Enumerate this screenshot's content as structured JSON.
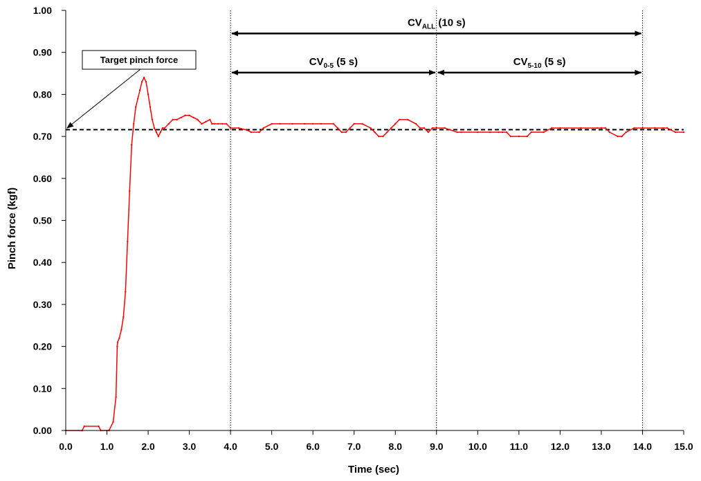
{
  "chart_data": {
    "type": "line",
    "xlabel": "Time (sec)",
    "ylabel": "Pinch force (kgf)",
    "xlim": [
      0,
      15
    ],
    "ylim": [
      0,
      1
    ],
    "x_ticks": [
      "0.0",
      "1.0",
      "2.0",
      "3.0",
      "4.0",
      "5.0",
      "6.0",
      "7.0",
      "8.0",
      "9.0",
      "10.0",
      "11.0",
      "12.0",
      "13.0",
      "14.0",
      "15.0"
    ],
    "y_ticks": [
      "0.00",
      "0.10",
      "0.20",
      "0.30",
      "0.40",
      "0.50",
      "0.60",
      "0.70",
      "0.80",
      "0.90",
      "1.00"
    ],
    "grid": false,
    "target_line": {
      "value": 0.716,
      "style": "dashed",
      "color": "#000000"
    },
    "series": [
      {
        "color": "#ff0000",
        "x": [
          0.0,
          0.4,
          0.45,
          0.8,
          0.85,
          1.05,
          1.15,
          1.22,
          1.25,
          1.26,
          1.3,
          1.35,
          1.4,
          1.45,
          1.5,
          1.55,
          1.6,
          1.65,
          1.7,
          1.75,
          1.8,
          1.85,
          1.9,
          1.95,
          2.0,
          2.05,
          2.1,
          2.15,
          2.2,
          2.25,
          2.3,
          2.35,
          2.4,
          2.5,
          2.6,
          2.7,
          2.8,
          2.9,
          3.0,
          3.1,
          3.2,
          3.3,
          3.4,
          3.5,
          3.55,
          3.6,
          3.7,
          3.8,
          3.9,
          4.0,
          4.2,
          4.4,
          4.5,
          4.7,
          4.8,
          5.0,
          5.2,
          5.5,
          5.8,
          6.0,
          6.2,
          6.5,
          6.6,
          6.7,
          6.8,
          6.9,
          7.0,
          7.2,
          7.4,
          7.5,
          7.6,
          7.7,
          7.8,
          7.9,
          8.0,
          8.1,
          8.3,
          8.5,
          8.6,
          8.7,
          8.8,
          8.9,
          9.0,
          9.2,
          9.5,
          9.6,
          10.0,
          10.3,
          10.5,
          10.6,
          10.7,
          10.8,
          11.0,
          11.2,
          11.3,
          11.6,
          11.8,
          12.0,
          12.5,
          12.9,
          13.0,
          13.1,
          13.2,
          13.4,
          13.5,
          13.6,
          13.8,
          14.0,
          14.3,
          14.5,
          14.6,
          14.8,
          15.0
        ],
        "values": [
          0.0,
          0.0,
          0.01,
          0.01,
          0.0,
          0.0,
          0.02,
          0.08,
          0.2,
          0.21,
          0.22,
          0.24,
          0.27,
          0.33,
          0.45,
          0.57,
          0.68,
          0.73,
          0.77,
          0.79,
          0.81,
          0.83,
          0.84,
          0.83,
          0.8,
          0.77,
          0.74,
          0.72,
          0.71,
          0.7,
          0.71,
          0.72,
          0.72,
          0.73,
          0.74,
          0.74,
          0.745,
          0.75,
          0.75,
          0.745,
          0.74,
          0.73,
          0.735,
          0.74,
          0.73,
          0.73,
          0.73,
          0.73,
          0.73,
          0.72,
          0.72,
          0.715,
          0.71,
          0.71,
          0.72,
          0.73,
          0.73,
          0.73,
          0.73,
          0.73,
          0.73,
          0.73,
          0.72,
          0.71,
          0.71,
          0.72,
          0.73,
          0.73,
          0.72,
          0.71,
          0.7,
          0.7,
          0.71,
          0.72,
          0.73,
          0.74,
          0.74,
          0.73,
          0.72,
          0.72,
          0.71,
          0.72,
          0.72,
          0.72,
          0.71,
          0.71,
          0.71,
          0.71,
          0.71,
          0.71,
          0.71,
          0.7,
          0.7,
          0.7,
          0.71,
          0.71,
          0.72,
          0.72,
          0.72,
          0.72,
          0.72,
          0.72,
          0.71,
          0.7,
          0.7,
          0.71,
          0.72,
          0.72,
          0.72,
          0.72,
          0.72,
          0.71,
          0.71
        ]
      }
    ],
    "vertical_lines": [
      4.0,
      9.0,
      14.0
    ],
    "annotations": [
      {
        "id": "cv_all",
        "text": "CV",
        "sub": "ALL",
        "tail": " (10 s)",
        "x_start": 4.0,
        "x_end": 14.0,
        "y": 0.945
      },
      {
        "id": "cv_05",
        "text": "CV",
        "sub": "0-5",
        "tail": " (5 s)",
        "x_start": 4.0,
        "x_end": 9.0,
        "y": 0.852
      },
      {
        "id": "cv_510",
        "text": "CV",
        "sub": "5-10",
        "tail": " (5 s)",
        "x_start": 9.0,
        "x_end": 14.0,
        "y": 0.852
      }
    ],
    "callout": {
      "text": "Target pinch force",
      "points_to": [
        0.0,
        0.716
      ]
    }
  }
}
